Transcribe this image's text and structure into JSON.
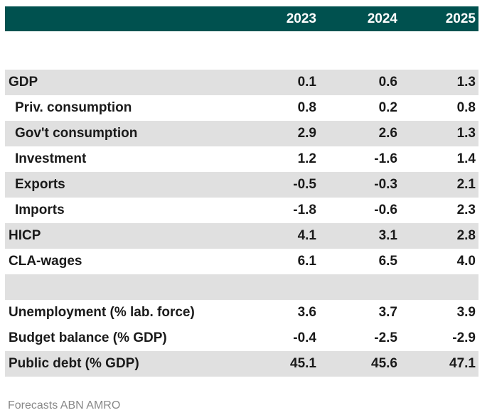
{
  "chart_data": {
    "type": "table",
    "columns": [
      "",
      "2023",
      "2024",
      "2025"
    ],
    "rows": [
      {
        "label": "",
        "values": [
          "",
          "",
          ""
        ],
        "indent": false,
        "shade": false,
        "spacer": true
      },
      {
        "label": "GDP",
        "values": [
          "0.1",
          "0.6",
          "1.3"
        ],
        "indent": false,
        "shade": true
      },
      {
        "label": "Priv. consumption",
        "values": [
          "0.8",
          "0.2",
          "0.8"
        ],
        "indent": true,
        "shade": false
      },
      {
        "label": "Gov't consumption",
        "values": [
          "2.9",
          "2.6",
          "1.3"
        ],
        "indent": true,
        "shade": true
      },
      {
        "label": "Investment",
        "values": [
          "1.2",
          "-1.6",
          "1.4"
        ],
        "indent": true,
        "shade": false
      },
      {
        "label": "Exports",
        "values": [
          "-0.5",
          "-0.3",
          "2.1"
        ],
        "indent": true,
        "shade": true
      },
      {
        "label": "Imports",
        "values": [
          "-1.8",
          "-0.6",
          "2.3"
        ],
        "indent": true,
        "shade": false
      },
      {
        "label": "HICP",
        "values": [
          "4.1",
          "3.1",
          "2.8"
        ],
        "indent": false,
        "shade": true
      },
      {
        "label": "CLA-wages",
        "values": [
          "6.1",
          "6.5",
          "4.0"
        ],
        "indent": false,
        "shade": false
      },
      {
        "label": "",
        "values": [
          "",
          "",
          ""
        ],
        "indent": false,
        "shade": true,
        "spacer": true
      },
      {
        "label": "Unemployment (% lab. force)",
        "values": [
          "3.6",
          "3.7",
          "3.9"
        ],
        "indent": false,
        "shade": false
      },
      {
        "label": "Budget balance (% GDP)",
        "values": [
          "-0.4",
          "-2.5",
          "-2.9"
        ],
        "indent": false,
        "shade": false
      },
      {
        "label": "Public debt (% GDP)",
        "values": [
          "45.1",
          "45.6",
          "47.1"
        ],
        "indent": false,
        "shade": true
      }
    ],
    "colors": {
      "header": "#00514f",
      "shade": "#e0e0e0"
    }
  },
  "footer": {
    "source": "Forecasts ABN AMRO"
  }
}
